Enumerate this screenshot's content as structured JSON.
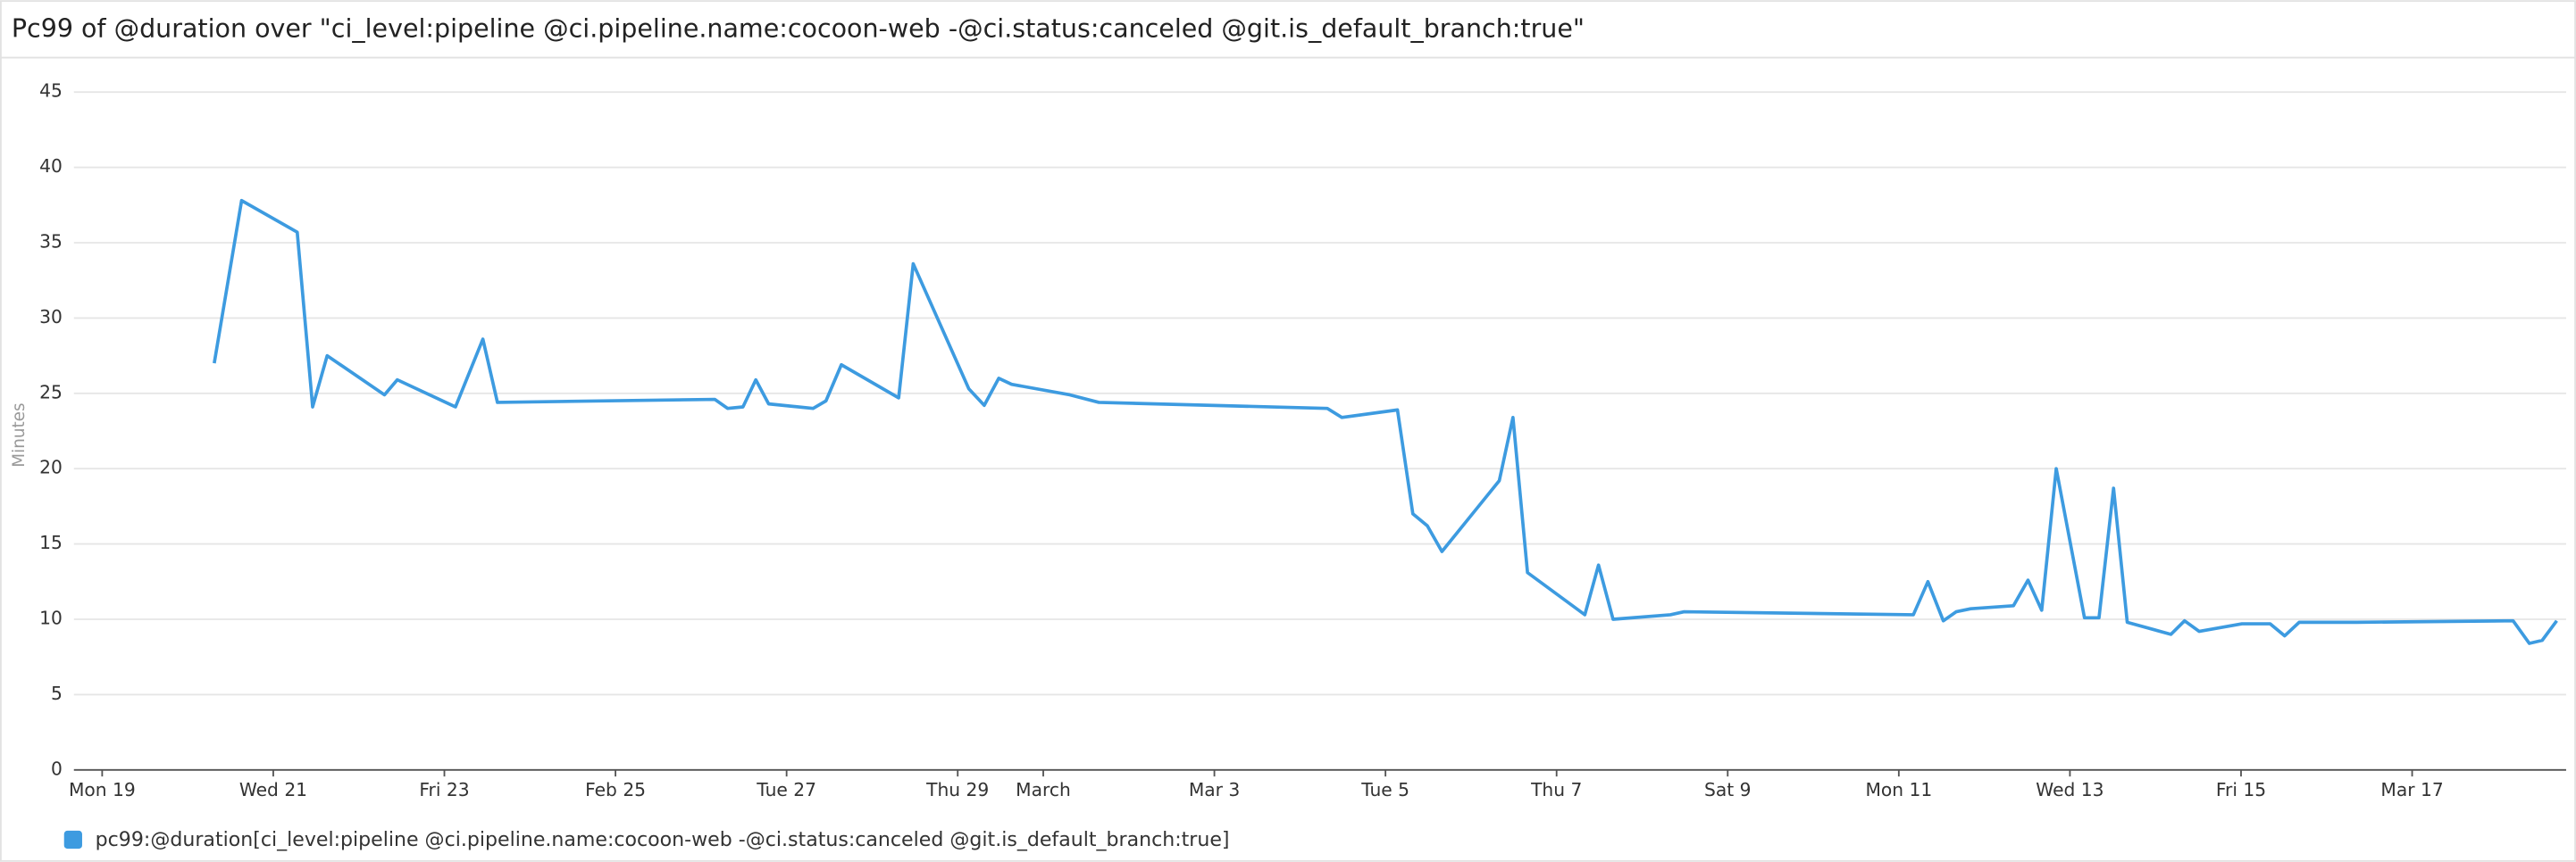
{
  "chart_data": {
    "type": "line",
    "title": "Pc99 of @duration over \"ci_level:pipeline @ci.pipeline.name:cocoon-web -@ci.status:canceled @git.is_default_branch:true\"",
    "y_label": "Minutes",
    "xlim": [
      -0.33,
      28.8
    ],
    "xticks": [
      {
        "value": 0,
        "label": "Mon 19"
      },
      {
        "value": 2,
        "label": "Wed 21"
      },
      {
        "value": 4,
        "label": "Fri 23"
      },
      {
        "value": 6,
        "label": "Feb 25"
      },
      {
        "value": 8,
        "label": "Tue 27"
      },
      {
        "value": 10,
        "label": "Thu 29"
      },
      {
        "value": 11,
        "label": "March"
      },
      {
        "value": 13,
        "label": "Mar 3"
      },
      {
        "value": 15,
        "label": "Tue 5"
      },
      {
        "value": 17,
        "label": "Thu 7"
      },
      {
        "value": 19,
        "label": "Sat 9"
      },
      {
        "value": 21,
        "label": "Mon 11"
      },
      {
        "value": 23,
        "label": "Wed 13"
      },
      {
        "value": 25,
        "label": "Fri 15"
      },
      {
        "value": 27,
        "label": "Mar 17"
      }
    ],
    "ylim": [
      0,
      45
    ],
    "yticks": [
      0,
      5,
      10,
      15,
      20,
      25,
      30,
      35,
      40,
      45
    ],
    "grid": true,
    "x": [
      1.31,
      1.63,
      2.28,
      2.46,
      2.63,
      3.3,
      3.45,
      4.13,
      4.45,
      4.62,
      7.16,
      7.31,
      7.49,
      7.64,
      7.79,
      8.31,
      8.46,
      8.64,
      9.31,
      9.48,
      10.13,
      10.31,
      10.48,
      10.63,
      11.31,
      11.65,
      14.32,
      14.49,
      15.14,
      15.32,
      15.49,
      15.66,
      16.33,
      16.49,
      16.66,
      17.33,
      17.49,
      17.66,
      18.33,
      18.49,
      21.17,
      21.34,
      21.52,
      21.67,
      21.84,
      22.34,
      22.51,
      22.67,
      22.84,
      23.17,
      23.34,
      23.51,
      23.67,
      24.18,
      24.34,
      24.51,
      25.01,
      25.18,
      25.34,
      25.51,
      25.68,
      26.35,
      28.18,
      28.37,
      28.52,
      28.69
    ],
    "series": [
      {
        "name": "pc99:@duration[ci_level:pipeline @ci.pipeline.name:cocoon-web -@ci.status:canceled @git.is_default_branch:true]",
        "color": "#3d9be0",
        "values": [
          27.0,
          37.8,
          35.7,
          24.1,
          27.5,
          24.9,
          25.9,
          24.1,
          28.6,
          24.4,
          24.6,
          24.0,
          24.1,
          25.9,
          24.3,
          24.0,
          24.5,
          26.9,
          24.7,
          33.6,
          25.3,
          24.2,
          26.0,
          25.6,
          24.9,
          24.4,
          24.0,
          23.4,
          23.9,
          17.0,
          16.2,
          14.5,
          19.2,
          23.4,
          13.1,
          10.3,
          13.6,
          10.0,
          10.3,
          10.5,
          10.3,
          12.5,
          9.9,
          10.5,
          10.7,
          10.9,
          12.6,
          10.6,
          20.0,
          10.1,
          10.1,
          18.7,
          9.8,
          9.0,
          9.9,
          9.2,
          9.7,
          9.7,
          9.7,
          8.9,
          9.8,
          9.8,
          9.9,
          8.4,
          8.6,
          9.9
        ]
      }
    ]
  }
}
